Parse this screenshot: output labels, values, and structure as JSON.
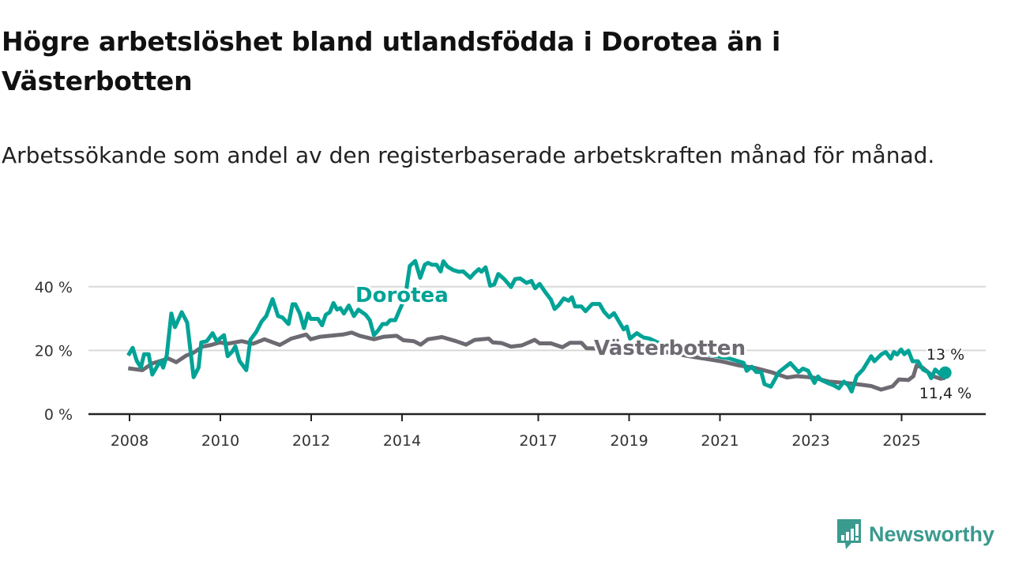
{
  "title": "Högre arbetslöshet bland utlandsfödda i Dorotea än i Västerbotten",
  "subtitle": "Arbetssökande som andel av den registerbaserade arbetskraften månad för månad.",
  "brand": {
    "name": "Newsworthy",
    "color": "#3a9a8e"
  },
  "chart_data": {
    "type": "line",
    "title": "Högre arbetslöshet bland utlandsfödda i Dorotea än i Västerbotten",
    "xlabel": "",
    "ylabel": "",
    "ylim": [
      0,
      50
    ],
    "xlim": [
      2007.8,
      2026.1
    ],
    "grid": true,
    "y_ticks": [
      {
        "value": 0,
        "label": "0 %"
      },
      {
        "value": 20,
        "label": "20 %"
      },
      {
        "value": 40,
        "label": "40 %"
      }
    ],
    "x_ticks": [
      {
        "value": 2008,
        "label": "2008"
      },
      {
        "value": 2010,
        "label": "2010"
      },
      {
        "value": 2012,
        "label": "2012"
      },
      {
        "value": 2014,
        "label": "2014"
      },
      {
        "value": 2017,
        "label": "2017"
      },
      {
        "value": 2019,
        "label": "2019"
      },
      {
        "value": 2021,
        "label": "2021"
      },
      {
        "value": 2023,
        "label": "2023"
      },
      {
        "value": 2025,
        "label": "2025"
      }
    ],
    "series": [
      {
        "name": "Dorotea",
        "color": "#00a396",
        "end_label": "13 %",
        "x": [
          2007.97,
          2008.07,
          2008.16,
          2008.25,
          2008.32,
          2008.42,
          2008.5,
          2008.59,
          2008.68,
          2008.74,
          2008.82,
          2008.92,
          2009.0,
          2009.15,
          2009.27,
          2009.41,
          2009.52,
          2009.58,
          2009.7,
          2009.83,
          2009.92,
          2010.08,
          2010.16,
          2010.26,
          2010.33,
          2010.42,
          2010.57,
          2010.66,
          2010.79,
          2010.91,
          2011.01,
          2011.15,
          2011.27,
          2011.37,
          2011.5,
          2011.59,
          2011.65,
          2011.75,
          2011.84,
          2011.93,
          2011.99,
          2012.15,
          2012.24,
          2012.32,
          2012.41,
          2012.49,
          2012.57,
          2012.64,
          2012.72,
          2012.83,
          2012.94,
          2013.04,
          2013.2,
          2013.29,
          2013.38,
          2013.47,
          2013.57,
          2013.66,
          2013.74,
          2013.85,
          2013.95,
          2014.07,
          2014.17,
          2014.29,
          2014.4,
          2014.5,
          2014.57,
          2014.66,
          2014.76,
          2014.85,
          2014.91,
          2015.0,
          2015.13,
          2015.25,
          2015.35,
          2015.5,
          2015.6,
          2015.69,
          2015.75,
          2015.84,
          2015.94,
          2016.03,
          2016.12,
          2016.25,
          2016.4,
          2016.49,
          2016.6,
          2016.74,
          2016.85,
          2016.93,
          2017.03,
          2017.17,
          2017.28,
          2017.36,
          2017.45,
          2017.56,
          2017.67,
          2017.74,
          2017.81,
          2017.95,
          2018.04,
          2018.19,
          2018.35,
          2018.45,
          2018.56,
          2018.67,
          2018.77,
          2018.88,
          2018.95,
          2019.02,
          2019.17,
          2019.31,
          2019.45,
          2019.7,
          2020.0,
          2020.4,
          2020.8,
          2021.2,
          2021.52,
          2021.59,
          2021.7,
          2021.8,
          2021.91,
          2021.98,
          2022.12,
          2022.3,
          2022.55,
          2022.73,
          2022.83,
          2022.94,
          2023.08,
          2023.16,
          2023.23,
          2023.37,
          2023.51,
          2023.62,
          2023.73,
          2023.83,
          2023.9,
          2024.01,
          2024.15,
          2024.33,
          2024.4,
          2024.55,
          2024.65,
          2024.76,
          2024.83,
          2024.9,
          2024.99,
          2025.06,
          2025.15,
          2025.24,
          2025.36,
          2025.47,
          2025.58,
          2025.65,
          2025.74,
          2025.86,
          2025.96
        ],
        "values": [
          18.4,
          20.8,
          16.7,
          14.6,
          18.8,
          18.8,
          12.4,
          14.6,
          16.7,
          14.6,
          18.4,
          31.6,
          27.3,
          32.0,
          28.7,
          11.6,
          14.6,
          22.5,
          22.9,
          25.4,
          22.9,
          24.8,
          18.2,
          19.6,
          21.3,
          16.7,
          13.8,
          23.3,
          25.8,
          29.1,
          30.8,
          36.1,
          30.8,
          30.3,
          28.3,
          34.5,
          34.5,
          31.6,
          27.0,
          31.6,
          29.9,
          29.9,
          27.9,
          31.2,
          32.0,
          34.9,
          32.8,
          33.3,
          31.6,
          34.1,
          30.8,
          32.8,
          31.2,
          29.5,
          24.8,
          26.2,
          28.3,
          28.3,
          29.5,
          29.5,
          32.8,
          36.6,
          46.5,
          48.1,
          42.8,
          46.9,
          47.5,
          46.9,
          46.9,
          44.8,
          48.0,
          46.3,
          45.2,
          44.7,
          44.8,
          42.8,
          44.4,
          45.5,
          44.7,
          46.1,
          40.3,
          40.7,
          44.0,
          42.4,
          39.9,
          42.4,
          42.6,
          41.2,
          41.8,
          39.5,
          40.9,
          38.0,
          35.9,
          33.0,
          34.2,
          36.3,
          35.6,
          36.7,
          33.8,
          33.8,
          32.3,
          34.6,
          34.6,
          32.1,
          30.4,
          31.7,
          29.2,
          26.6,
          27.5,
          23.7,
          25.4,
          24.1,
          23.7,
          22.0,
          21.0,
          19.5,
          18.5,
          17.5,
          16.1,
          13.6,
          14.9,
          13.2,
          13.2,
          9.4,
          8.6,
          13.2,
          16.0,
          13.2,
          14.3,
          13.6,
          9.8,
          11.8,
          10.7,
          9.8,
          9.0,
          8.1,
          10.2,
          9.0,
          7.1,
          11.9,
          14.0,
          18.2,
          16.6,
          18.7,
          19.5,
          17.4,
          19.5,
          18.7,
          20.3,
          18.8,
          19.9,
          16.6,
          16.6,
          14.0,
          13.2,
          11.3,
          14.0,
          12.4,
          13.0
        ]
      },
      {
        "name": "Västerbotten",
        "color": "#6d6a72",
        "end_label": "11,4 %",
        "x": [
          2007.97,
          2008.28,
          2008.5,
          2008.68,
          2008.85,
          2009.03,
          2009.25,
          2009.4,
          2009.61,
          2009.8,
          2009.98,
          2010.16,
          2010.47,
          2010.72,
          2010.97,
          2011.31,
          2011.56,
          2011.89,
          2011.99,
          2012.2,
          2012.7,
          2012.89,
          2013.07,
          2013.38,
          2013.6,
          2013.88,
          2014.03,
          2014.26,
          2014.41,
          2014.57,
          2014.88,
          2015.19,
          2015.41,
          2015.6,
          2015.91,
          2016.0,
          2016.19,
          2016.4,
          2016.64,
          2016.92,
          2017.03,
          2017.28,
          2017.53,
          2017.7,
          2017.95,
          2018.06,
          2018.6,
          2019.2,
          2019.8,
          2020.4,
          2021.02,
          2021.41,
          2021.77,
          2022.12,
          2022.48,
          2022.69,
          2023.05,
          2023.4,
          2023.76,
          2024.12,
          2024.33,
          2024.55,
          2024.8,
          2024.94,
          2025.15,
          2025.26,
          2025.33,
          2025.47,
          2025.69,
          2025.86,
          2025.96
        ],
        "values": [
          14.4,
          13.8,
          15.9,
          16.7,
          17.5,
          16.3,
          18.4,
          19.2,
          21.2,
          21.7,
          22.5,
          22.1,
          22.9,
          22.1,
          23.5,
          21.7,
          23.7,
          25.0,
          23.5,
          24.3,
          25.0,
          25.6,
          24.6,
          23.5,
          24.3,
          24.6,
          23.2,
          22.9,
          21.8,
          23.5,
          24.2,
          22.9,
          21.8,
          23.3,
          23.7,
          22.5,
          22.3,
          21.2,
          21.6,
          23.3,
          22.2,
          22.2,
          21.0,
          22.4,
          22.4,
          20.7,
          20.5,
          20.2,
          19.5,
          18.0,
          16.6,
          15.3,
          14.5,
          13.2,
          11.5,
          11.9,
          11.5,
          10.2,
          9.8,
          9.2,
          8.8,
          7.7,
          8.7,
          10.9,
          10.7,
          11.9,
          15.3,
          14.5,
          11.9,
          11.1,
          11.4
        ]
      }
    ]
  }
}
